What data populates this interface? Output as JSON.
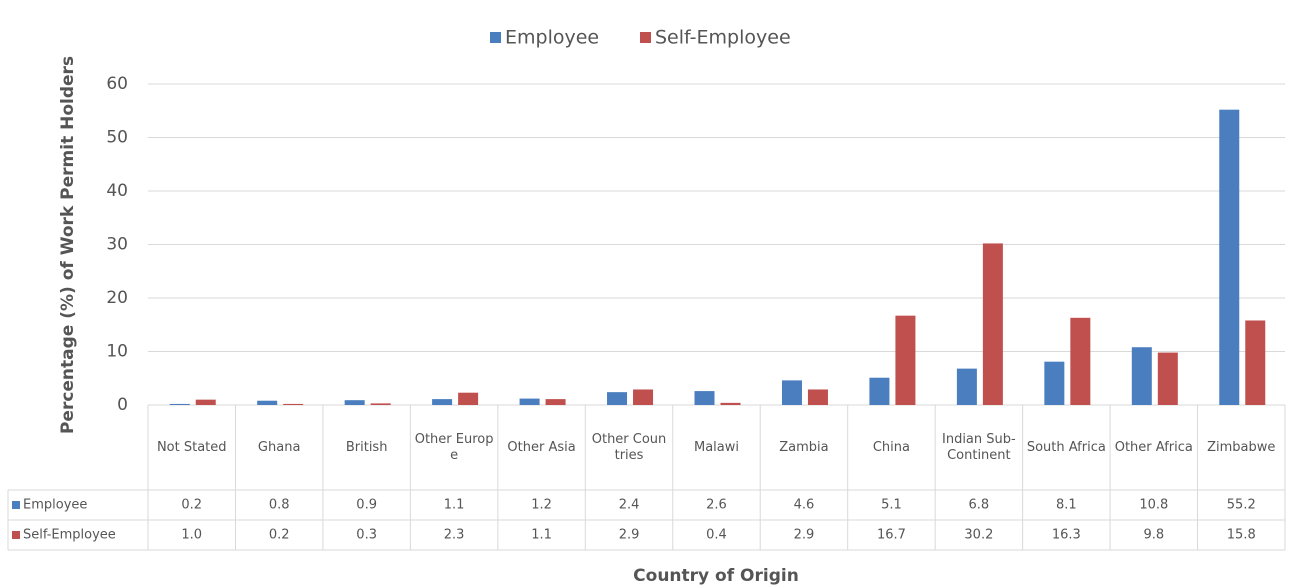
{
  "chart_data": {
    "type": "bar",
    "categories": [
      "Not Stated",
      "Ghana",
      "British",
      "Other Europe",
      "Other Asia",
      "Other Countries",
      "Malawi",
      "Zambia",
      "China",
      "Indian Sub-Continent",
      "South Africa",
      "Other Africa",
      "Zimbabwe"
    ],
    "series": [
      {
        "name": "Employee",
        "color": "#4a7ebf",
        "values": [
          0.2,
          0.8,
          0.9,
          1.1,
          1.2,
          2.4,
          2.6,
          4.6,
          5.1,
          6.8,
          8.1,
          10.8,
          55.2
        ]
      },
      {
        "name": "Self-Employee",
        "color": "#c0504d",
        "values": [
          1.0,
          0.2,
          0.3,
          2.3,
          1.1,
          2.9,
          0.4,
          2.9,
          16.7,
          30.2,
          16.3,
          9.8,
          15.8
        ],
        "value_labels": [
          "1.0",
          "0.2",
          "0.3",
          "2.3",
          "1.1",
          "2.9",
          "0.4",
          "2.9",
          "16.7",
          "30.2",
          "16.3",
          "9.8",
          "15.8"
        ]
      }
    ],
    "ylabel": "Percentage (%) of Work Permit Holders",
    "xlabel": "Country of Origin",
    "ylim": [
      0,
      60
    ],
    "yticks": [
      0,
      10,
      20,
      30,
      40,
      50,
      60
    ],
    "grid": true,
    "legend": "top",
    "data_table": true
  }
}
